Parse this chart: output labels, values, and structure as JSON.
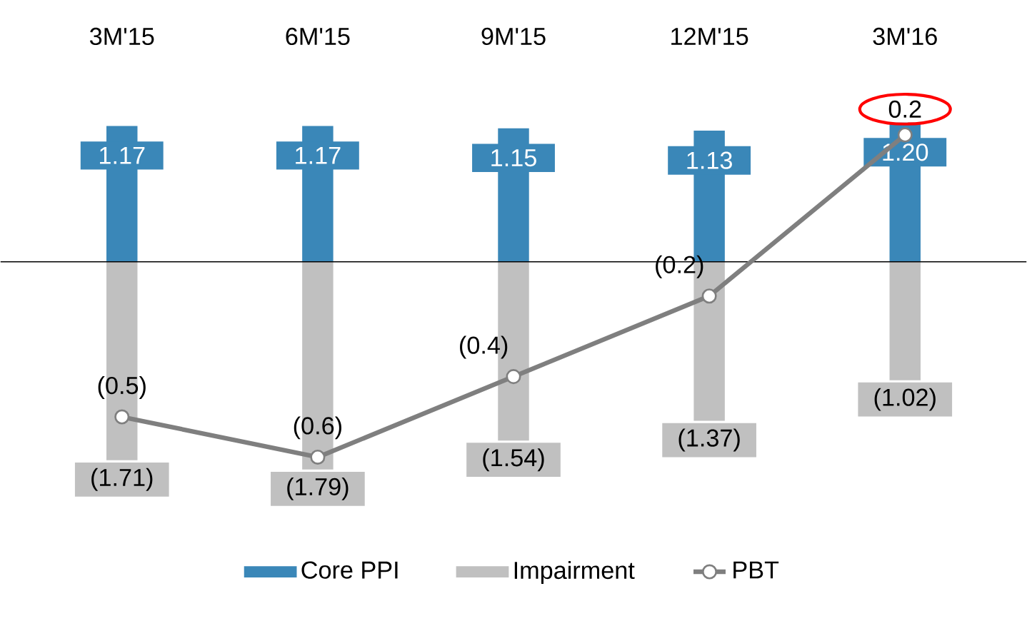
{
  "chart_data": {
    "type": "bar",
    "categories": [
      "3M'15",
      "6M'15",
      "9M'15",
      "12M'15",
      "3M'16"
    ],
    "series": [
      {
        "name": "Core PPI",
        "color": "#3a87b8",
        "values": [
          1.17,
          1.17,
          1.15,
          1.13,
          1.2
        ],
        "value_labels": [
          "1.17",
          "1.17",
          "1.15",
          "1.13",
          "1.20"
        ]
      },
      {
        "name": "Impairment",
        "color": "#c0c0c0",
        "values": [
          -1.71,
          -1.79,
          -1.54,
          -1.37,
          -1.02
        ],
        "value_labels": [
          "(1.71)",
          "(1.79)",
          "(1.54)",
          "(1.37)",
          "(1.02)"
        ]
      },
      {
        "name": "PBT",
        "type": "line",
        "axis": "y2",
        "color": "#7f7f7f",
        "values": [
          -0.5,
          -0.6,
          -0.4,
          -0.2,
          0.2
        ],
        "value_labels": [
          "(0.5)",
          "(0.6)",
          "(0.4)",
          "(0.2)",
          "0.2"
        ]
      }
    ],
    "stacked": true,
    "tick_labels": "x",
    "legend": "bottom",
    "marker": "circle",
    "line_style": "solid"
  }
}
